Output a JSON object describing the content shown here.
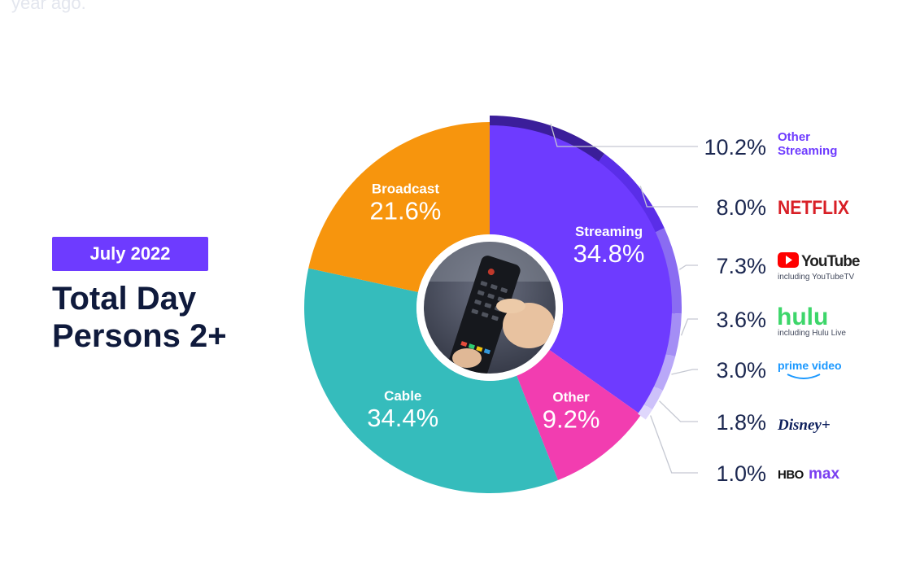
{
  "header": {
    "faded_text": "year ago.",
    "badge": "July 2022",
    "title_line1": "Total Day",
    "title_line2": "Persons 2+"
  },
  "chart_data": {
    "type": "pie",
    "categories": [
      "Streaming",
      "Other",
      "Cable",
      "Broadcast"
    ],
    "values": [
      34.8,
      9.2,
      34.4,
      21.6
    ],
    "labels": [
      "34.8%",
      "9.2%",
      "34.4%",
      "21.6%"
    ],
    "colors": [
      "#6e3bff",
      "#f23db0",
      "#35bcbc",
      "#f7950d"
    ],
    "streaming_breakdown": [
      {
        "name": "Other Streaming",
        "value": 10.2,
        "label": "10.2%",
        "color": "#3b1e9a"
      },
      {
        "name": "NETFLIX",
        "value": 8.0,
        "label": "8.0%",
        "color": "#5a2ee8"
      },
      {
        "name": "YouTube",
        "sub": "including YouTubeTV",
        "value": 7.3,
        "label": "7.3%",
        "color": "#8a6cf2"
      },
      {
        "name": "hulu",
        "sub": "including Hulu Live",
        "value": 3.6,
        "label": "3.6%",
        "color": "#a48ef5"
      },
      {
        "name": "prime video",
        "value": 3.0,
        "label": "3.0%",
        "color": "#b9a8f8"
      },
      {
        "name": "Disney+",
        "value": 1.8,
        "label": "1.8%",
        "color": "#cdc1fa"
      },
      {
        "name": "HBO max",
        "value": 1.0,
        "label": "1.0%",
        "color": "#dfd7fc"
      }
    ],
    "other_streaming_line1": "Other",
    "other_streaming_line2": "Streaming",
    "center_image": "tv-remote-photo"
  }
}
